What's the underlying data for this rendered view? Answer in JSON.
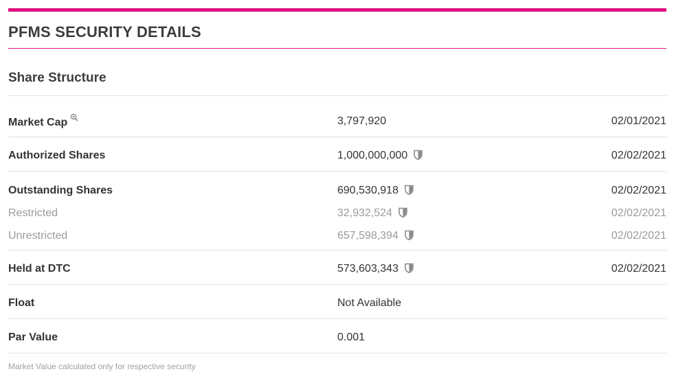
{
  "page": {
    "title": "PFMS SECURITY DETAILS",
    "accent_color": "#e0117f"
  },
  "share_structure": {
    "heading": "Share Structure",
    "market_cap": {
      "label": "Market Cap",
      "icon": "magnifier-icon",
      "value": "3,797,920",
      "date": "02/01/2021"
    },
    "authorized": {
      "label": "Authorized Shares",
      "icon": "shield-icon",
      "value": "1,000,000,000",
      "date": "02/02/2021"
    },
    "outstanding": {
      "label": "Outstanding Shares",
      "icon": "shield-icon",
      "value": "690,530,918",
      "date": "02/02/2021"
    },
    "restricted": {
      "label": "Restricted",
      "icon": "shield-icon",
      "value": "32,932,524",
      "date": "02/02/2021"
    },
    "unrestricted": {
      "label": "Unrestricted",
      "icon": "shield-icon",
      "value": "657,598,394",
      "date": "02/02/2021"
    },
    "held_at_dtc": {
      "label": "Held at DTC",
      "icon": "shield-icon",
      "value": "573,603,343",
      "date": "02/02/2021"
    },
    "float": {
      "label": "Float",
      "value": "Not Available"
    },
    "par_value": {
      "label": "Par Value",
      "value": "0.001"
    }
  },
  "footnote": "Market Value calculated only for respective security"
}
